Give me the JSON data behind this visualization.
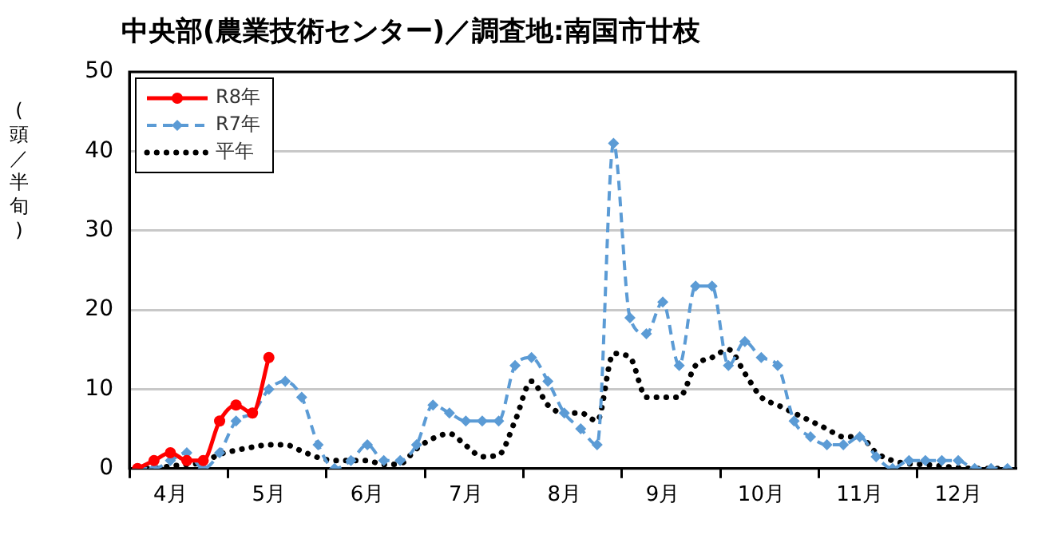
{
  "chart_data": {
    "type": "line",
    "title": "中央部(農業技術センター)／調査地:南国市廿枝",
    "ylabel": "(頭／半旬)",
    "categories": [
      null,
      null,
      "4月",
      null,
      null,
      null,
      null,
      null,
      "5月",
      null,
      null,
      null,
      null,
      null,
      "6月",
      null,
      null,
      null,
      null,
      null,
      "7月",
      null,
      null,
      null,
      null,
      null,
      "8月",
      null,
      null,
      null,
      null,
      null,
      "9月",
      null,
      null,
      null,
      null,
      null,
      "10月",
      null,
      null,
      null,
      null,
      null,
      "11月",
      null,
      null,
      null,
      null,
      null,
      "12月",
      null,
      null,
      null
    ],
    "ylim": [
      0,
      50
    ],
    "yticks": [
      0,
      10,
      20,
      30,
      40,
      50
    ],
    "grid": "y",
    "legend": "top left",
    "series": [
      {
        "name": "R8年",
        "color": "#ff0000",
        "marker": "circle",
        "line_style": "solid",
        "values": [
          0,
          1,
          2,
          1,
          1,
          6,
          8,
          7,
          14,
          null,
          null,
          null,
          null,
          null,
          null,
          null,
          null,
          null,
          null,
          null,
          null,
          null,
          null,
          null,
          null,
          null,
          null,
          null,
          null,
          null,
          null,
          null,
          null,
          null,
          null,
          null,
          null,
          null,
          null,
          null,
          null,
          null,
          null,
          null,
          null,
          null,
          null,
          null,
          null,
          null,
          null,
          null,
          null,
          null
        ]
      },
      {
        "name": "R7年",
        "color": "#5b9bd5",
        "marker": "diamond",
        "line_style": "dashed",
        "values": [
          0,
          0,
          1,
          2,
          0,
          2,
          6,
          7,
          10,
          11,
          9,
          3,
          0,
          1,
          3,
          1,
          1,
          3,
          8,
          7,
          6,
          6,
          6,
          13,
          14,
          11,
          7,
          5,
          3,
          41,
          19,
          17,
          21,
          13,
          23,
          23,
          13,
          16,
          14,
          13,
          6,
          4,
          3,
          3,
          4,
          1.5,
          0,
          1,
          1,
          1,
          1,
          0,
          0,
          0
        ]
      },
      {
        "name": "平年",
        "color": "#000000",
        "marker": "none",
        "line_style": "dotted",
        "values": [
          0,
          0,
          0.3,
          0.5,
          0.8,
          1.8,
          2.3,
          2.7,
          3,
          3,
          2.2,
          1.4,
          1,
          1,
          1,
          0.5,
          0.6,
          2.5,
          3.8,
          4.4,
          2.9,
          1.5,
          1.7,
          6,
          11,
          8,
          7,
          7,
          6,
          14.5,
          14,
          9,
          9,
          9,
          13,
          14,
          15,
          12,
          9,
          8,
          7,
          6,
          5,
          4,
          4,
          2,
          1,
          0.6,
          0.5,
          0.3,
          0.1,
          0,
          0,
          0
        ]
      }
    ]
  }
}
